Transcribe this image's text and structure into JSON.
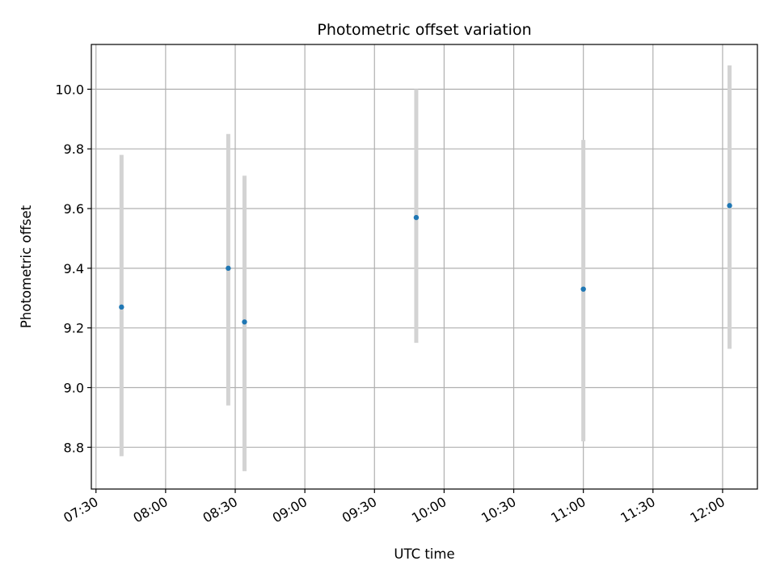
{
  "chart_data": {
    "type": "scatter",
    "title": "Photometric offset variation",
    "xlabel": "UTC time",
    "ylabel": "Photometric offset",
    "x_axis_type": "time",
    "xlim": [
      "07:28",
      "12:15"
    ],
    "ylim": [
      8.66,
      10.15
    ],
    "x_ticks": [
      "07:30",
      "08:00",
      "08:30",
      "09:00",
      "09:30",
      "10:00",
      "10:30",
      "11:00",
      "11:30",
      "12:00"
    ],
    "y_ticks": [
      "8.8",
      "9.0",
      "9.2",
      "9.4",
      "9.6",
      "9.8",
      "10.0"
    ],
    "grid": true,
    "legend": false,
    "points": [
      {
        "time": "07:41",
        "value": 9.27,
        "lower": 8.77,
        "upper": 9.78
      },
      {
        "time": "08:27",
        "value": 9.4,
        "lower": 8.94,
        "upper": 9.85
      },
      {
        "time": "08:34",
        "value": 9.22,
        "lower": 8.72,
        "upper": 9.71
      },
      {
        "time": "09:48",
        "value": 9.57,
        "lower": 9.15,
        "upper": 10.0
      },
      {
        "time": "11:00",
        "value": 9.33,
        "lower": 8.82,
        "upper": 9.83
      },
      {
        "time": "12:03",
        "value": 9.61,
        "lower": 9.13,
        "upper": 10.08
      }
    ],
    "colors": {
      "marker": "#1f77b4",
      "error_bar": "#d3d3d3",
      "grid": "#b0b0b0"
    }
  }
}
